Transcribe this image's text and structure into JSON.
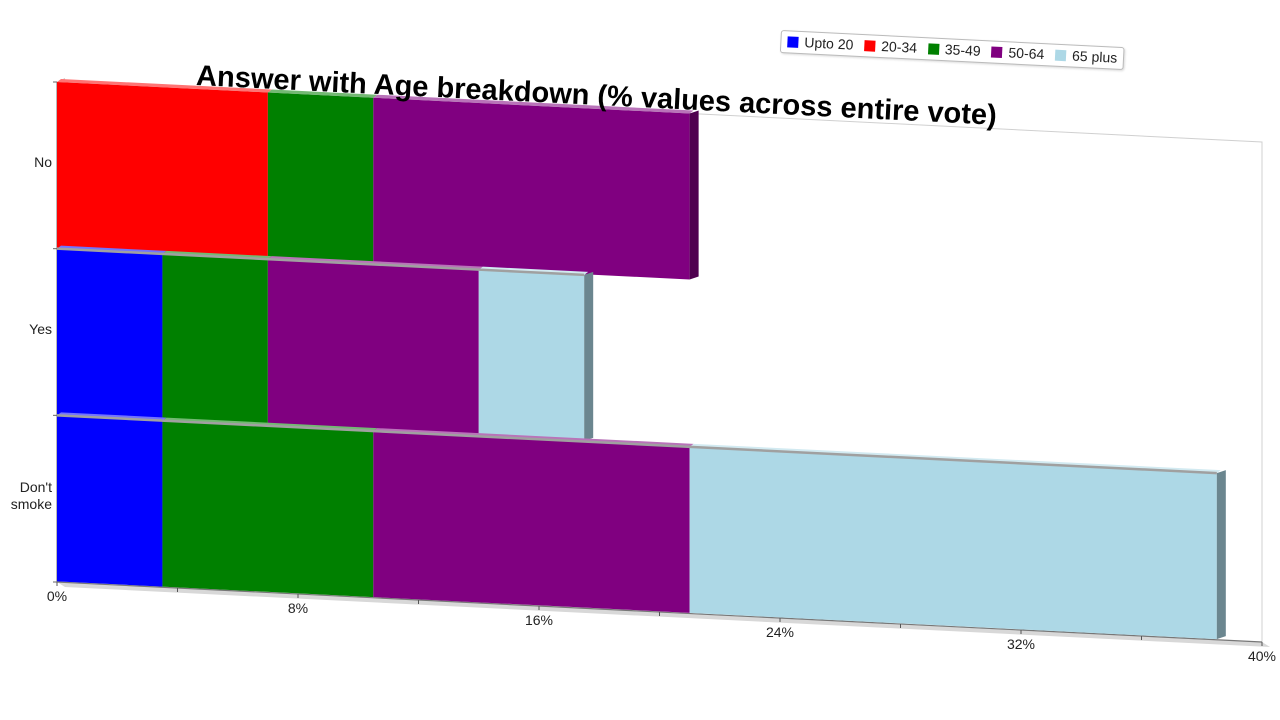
{
  "chart_data": {
    "type": "bar",
    "orientation": "horizontal",
    "stacked": true,
    "title": "Answer with Age breakdown (% values across entire vote)",
    "categories": [
      "No",
      "Yes",
      "Don't smoke"
    ],
    "series": [
      {
        "name": "Upto 20",
        "color": "#0000ff",
        "values": [
          0,
          3.5,
          3.5
        ]
      },
      {
        "name": "20-34",
        "color": "#ff0000",
        "values": [
          7,
          0,
          0
        ]
      },
      {
        "name": "35-49",
        "color": "#008000",
        "values": [
          3.5,
          3.5,
          7
        ]
      },
      {
        "name": "50-64",
        "color": "#800080",
        "values": [
          10.5,
          7,
          10.5
        ]
      },
      {
        "name": "65 plus",
        "color": "#add8e6",
        "values": [
          0,
          3.5,
          17.5
        ]
      }
    ],
    "x_ticks": [
      "0%",
      "8%",
      "16%",
      "24%",
      "32%",
      "40%"
    ],
    "xlim": [
      0,
      40
    ],
    "legend_position": "top-right",
    "grid": false
  }
}
